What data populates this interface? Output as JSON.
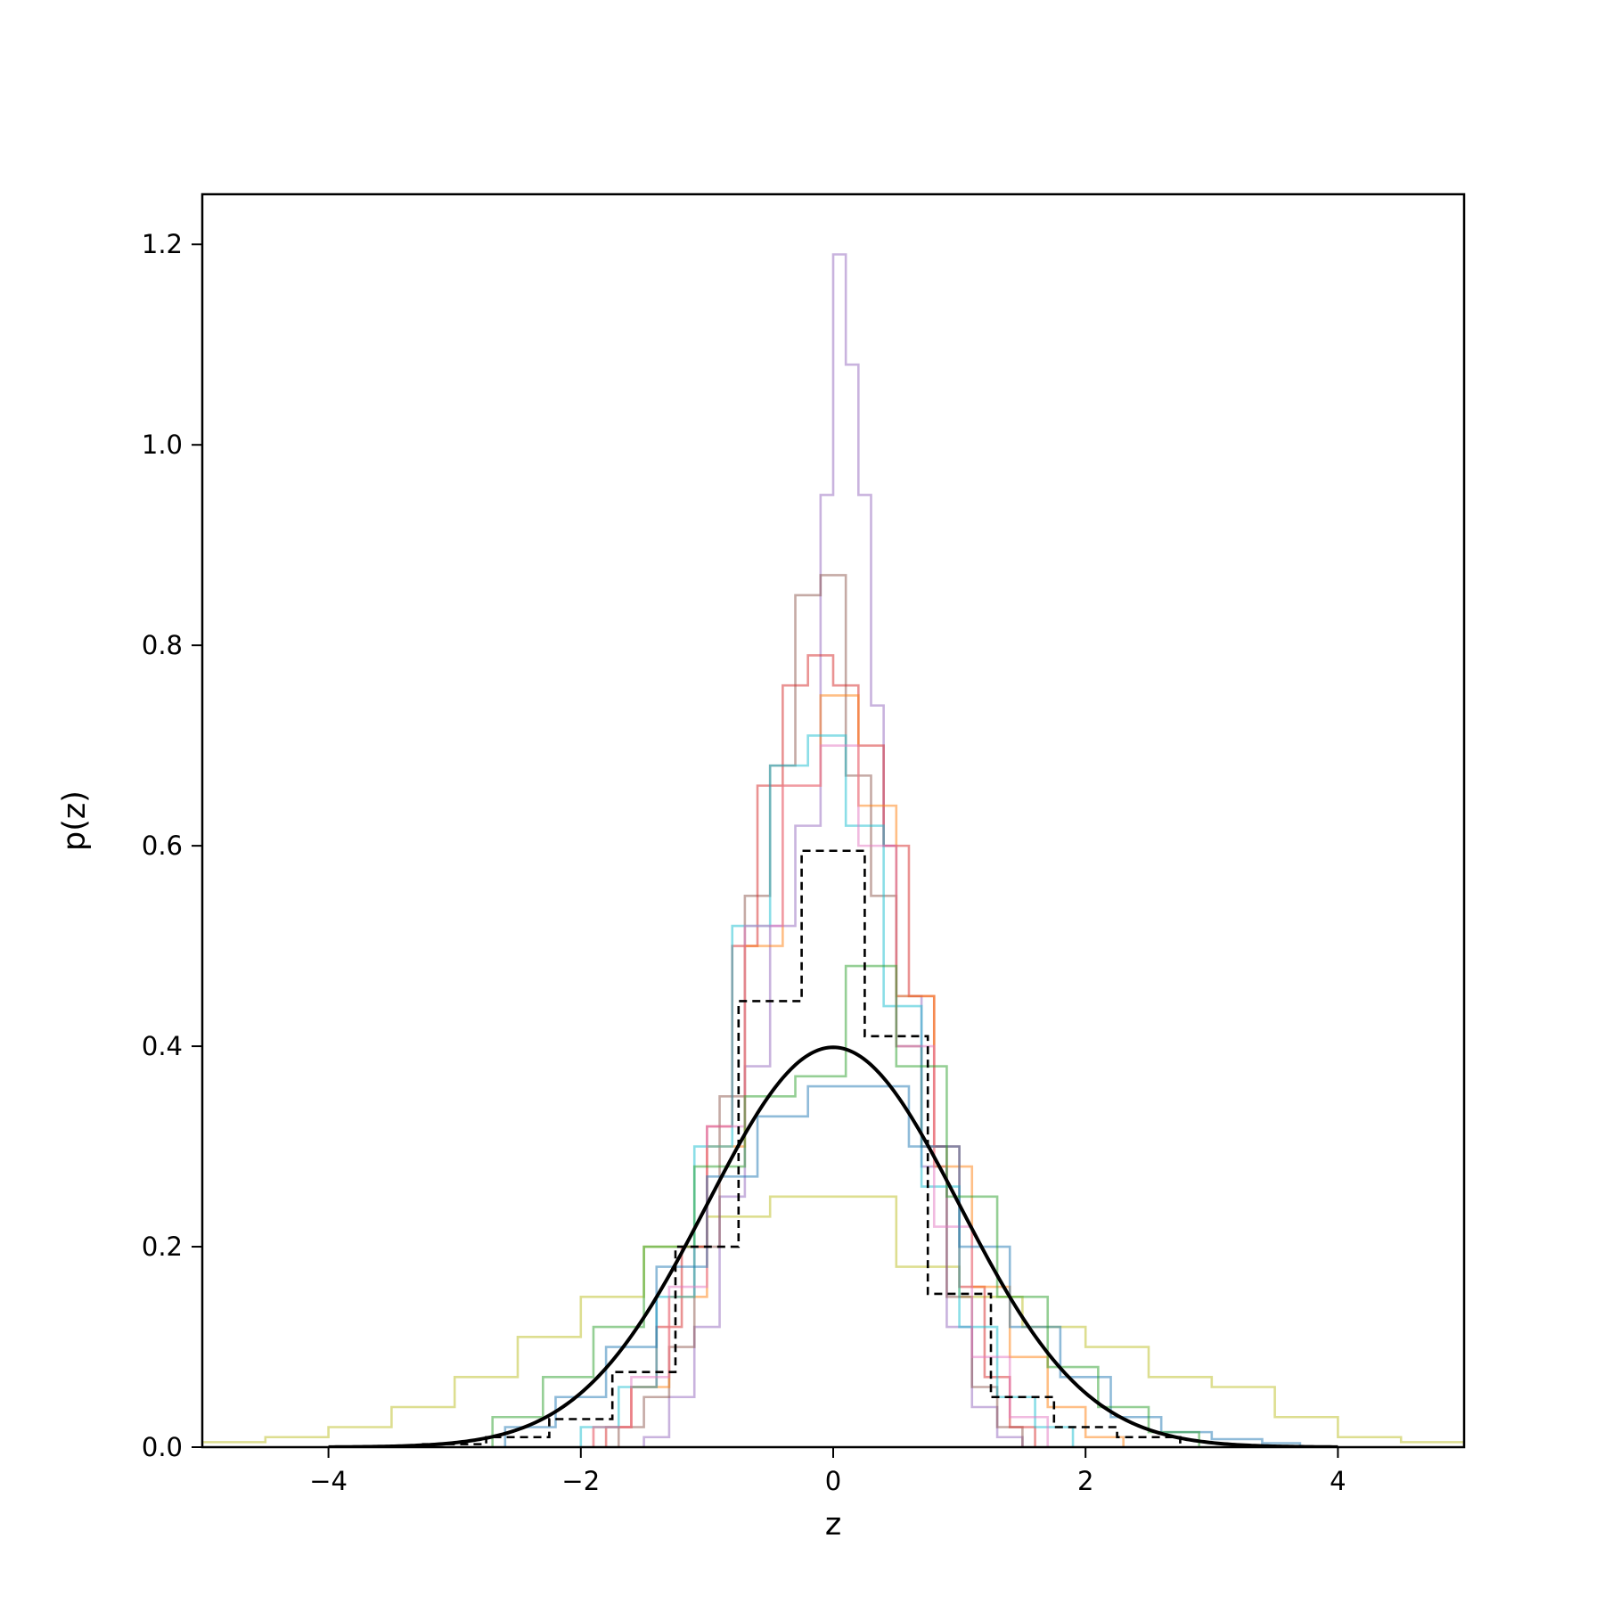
{
  "chart_data": {
    "type": "line",
    "title": "",
    "xlabel": "z",
    "ylabel": "p(z)",
    "xlim": [
      -5,
      5
    ],
    "ylim": [
      0,
      1.25
    ],
    "grid": false,
    "legend": "none",
    "x_ticks": [
      {
        "value": -4,
        "label": "−4"
      },
      {
        "value": -2,
        "label": "−2"
      },
      {
        "value": 0,
        "label": "0"
      },
      {
        "value": 2,
        "label": "2"
      },
      {
        "value": 4,
        "label": "4"
      }
    ],
    "y_ticks": [
      {
        "value": 0.0,
        "label": "0.0"
      },
      {
        "value": 0.2,
        "label": "0.2"
      },
      {
        "value": 0.4,
        "label": "0.4"
      },
      {
        "value": 0.6,
        "label": "0.6"
      },
      {
        "value": 0.8,
        "label": "0.8"
      },
      {
        "value": 1.0,
        "label": "1.0"
      },
      {
        "value": 1.2,
        "label": "1.2"
      }
    ],
    "reference_curve": {
      "style": "solid",
      "color": "#000000",
      "mean": 0,
      "std": 1,
      "x_range": [
        -4,
        4
      ]
    },
    "series": [
      {
        "color": "#bcbd22",
        "style": "step",
        "edges": [
          -5.0,
          -4.5,
          -4.0,
          -3.5,
          -3.0,
          -2.5,
          -2.0,
          -1.5,
          -1.0,
          -0.5,
          0.0,
          0.5,
          1.0,
          1.5,
          2.0,
          2.5,
          3.0,
          3.5,
          4.0,
          4.5,
          5.0
        ],
        "values": [
          0.005,
          0.01,
          0.02,
          0.04,
          0.07,
          0.11,
          0.15,
          0.2,
          0.23,
          0.25,
          0.25,
          0.18,
          0.15,
          0.12,
          0.1,
          0.07,
          0.06,
          0.03,
          0.01,
          0.005
        ]
      },
      {
        "color": "#9467bd",
        "style": "step",
        "edges": [
          -1.5,
          -1.3,
          -1.1,
          -0.9,
          -0.7,
          -0.5,
          -0.3,
          -0.1,
          0.0,
          0.1,
          0.2,
          0.3,
          0.4,
          0.5,
          0.7,
          0.9,
          1.1,
          1.3,
          1.5
        ],
        "values": [
          0.01,
          0.05,
          0.12,
          0.25,
          0.38,
          0.52,
          0.62,
          0.95,
          1.19,
          1.08,
          0.95,
          0.74,
          0.6,
          0.45,
          0.28,
          0.12,
          0.04,
          0.01
        ]
      },
      {
        "color": "#8c564b",
        "style": "step",
        "edges": [
          -1.7,
          -1.5,
          -1.3,
          -1.1,
          -0.9,
          -0.7,
          -0.5,
          -0.3,
          -0.1,
          0.1,
          0.3,
          0.5,
          0.7,
          0.9,
          1.1,
          1.3,
          1.5
        ],
        "values": [
          0.02,
          0.05,
          0.1,
          0.2,
          0.35,
          0.55,
          0.68,
          0.85,
          0.87,
          0.67,
          0.55,
          0.4,
          0.3,
          0.15,
          0.06,
          0.02
        ]
      },
      {
        "color": "#d62728",
        "style": "step",
        "edges": [
          -1.8,
          -1.6,
          -1.4,
          -1.2,
          -1.0,
          -0.8,
          -0.6,
          -0.4,
          -0.2,
          0.0,
          0.2,
          0.4,
          0.6,
          0.8,
          1.0,
          1.2,
          1.4,
          1.6
        ],
        "values": [
          0.02,
          0.06,
          0.12,
          0.2,
          0.32,
          0.5,
          0.66,
          0.76,
          0.79,
          0.76,
          0.7,
          0.6,
          0.45,
          0.3,
          0.16,
          0.07,
          0.02
        ]
      },
      {
        "color": "#ff7f0e",
        "style": "step",
        "edges": [
          -1.9,
          -1.6,
          -1.3,
          -1.0,
          -0.7,
          -0.4,
          -0.1,
          0.2,
          0.5,
          0.8,
          1.1,
          1.4,
          1.7,
          2.0,
          2.3
        ],
        "values": [
          0.02,
          0.06,
          0.15,
          0.3,
          0.5,
          0.66,
          0.75,
          0.64,
          0.45,
          0.28,
          0.16,
          0.09,
          0.04,
          0.01
        ]
      },
      {
        "color": "#17becf",
        "style": "step",
        "edges": [
          -2.0,
          -1.7,
          -1.4,
          -1.1,
          -0.8,
          -0.5,
          -0.2,
          0.1,
          0.4,
          0.7,
          1.0,
          1.3,
          1.6,
          1.9
        ],
        "values": [
          0.02,
          0.06,
          0.15,
          0.3,
          0.52,
          0.68,
          0.71,
          0.62,
          0.44,
          0.26,
          0.12,
          0.05,
          0.02
        ]
      },
      {
        "color": "#e377c2",
        "style": "step",
        "edges": [
          -1.9,
          -1.6,
          -1.3,
          -1.0,
          -0.7,
          -0.4,
          -0.1,
          0.2,
          0.5,
          0.8,
          1.1,
          1.4,
          1.7
        ],
        "values": [
          0.02,
          0.07,
          0.16,
          0.32,
          0.52,
          0.66,
          0.7,
          0.6,
          0.4,
          0.22,
          0.09,
          0.03
        ]
      },
      {
        "color": "#1f77b4",
        "style": "step",
        "edges": [
          -2.6,
          -2.2,
          -1.8,
          -1.4,
          -1.0,
          -0.6,
          -0.2,
          0.2,
          0.6,
          1.0,
          1.4,
          1.8,
          2.2,
          2.6,
          3.0,
          3.4,
          3.7
        ],
        "values": [
          0.02,
          0.05,
          0.1,
          0.18,
          0.27,
          0.33,
          0.36,
          0.36,
          0.3,
          0.2,
          0.12,
          0.07,
          0.03,
          0.015,
          0.008,
          0.004
        ]
      },
      {
        "color": "#2ca02c",
        "style": "step",
        "edges": [
          -2.7,
          -2.3,
          -1.9,
          -1.5,
          -1.1,
          -0.7,
          -0.3,
          0.1,
          0.5,
          0.9,
          1.3,
          1.7,
          2.1,
          2.5,
          2.9
        ],
        "values": [
          0.03,
          0.07,
          0.12,
          0.2,
          0.28,
          0.35,
          0.37,
          0.48,
          0.38,
          0.25,
          0.15,
          0.08,
          0.04,
          0.015
        ]
      },
      {
        "color": "#000000",
        "style": "dashed-step",
        "edges": [
          -3.25,
          -2.75,
          -2.25,
          -1.75,
          -1.25,
          -0.75,
          -0.25,
          0.25,
          0.75,
          1.25,
          1.75,
          2.25,
          2.75
        ],
        "values": [
          0.003,
          0.01,
          0.028,
          0.075,
          0.2,
          0.445,
          0.595,
          0.41,
          0.153,
          0.05,
          0.02,
          0.01
        ]
      }
    ]
  }
}
